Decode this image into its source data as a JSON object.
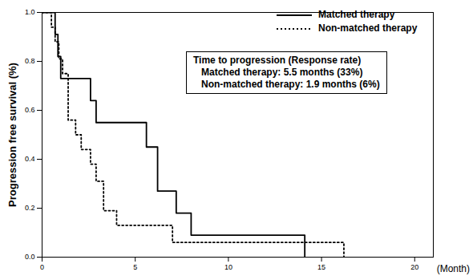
{
  "chart_data": {
    "type": "line",
    "y_label": "Progression free survival (%)",
    "x_label": "(Month)",
    "annotations": [
      "Time to progression (Response rate)",
      "Matched therapy: 5.5 months (33%)",
      "Non-matched therapy: 1.9 months (6%)"
    ],
    "xlim": [
      0,
      21
    ],
    "xticks": [
      0,
      5,
      10,
      15,
      20
    ],
    "ylim": [
      0,
      1
    ],
    "yticks": [
      {
        "value": 0,
        "label": "0.0"
      },
      0.2,
      0.4,
      0.6,
      0.8,
      {
        "value": 1,
        "label": "1.0"
      }
    ],
    "grid": false,
    "legend": "top-right",
    "series": [
      {
        "name": "Matched therapy",
        "color": "#000000",
        "line_style": "solid",
        "x": [
          0,
          0.7,
          0.85,
          1.0,
          2.6,
          2.9,
          5.6,
          6.2,
          7.2,
          8.0,
          14.1
        ],
        "values": [
          1.0,
          0.91,
          0.82,
          0.73,
          0.64,
          0.55,
          0.45,
          0.27,
          0.18,
          0.09,
          0
        ]
      },
      {
        "name": "Non-matched therapy",
        "color": "#000000",
        "line_style": "dotted",
        "x": [
          0,
          0.5,
          0.7,
          0.9,
          1.1,
          1.4,
          1.8,
          2.1,
          2.6,
          2.9,
          3.3,
          4.0,
          7.0,
          16.2
        ],
        "values": [
          1.0,
          0.94,
          0.88,
          0.81,
          0.75,
          0.56,
          0.5,
          0.44,
          0.38,
          0.31,
          0.19,
          0.13,
          0.06,
          0
        ]
      }
    ]
  }
}
